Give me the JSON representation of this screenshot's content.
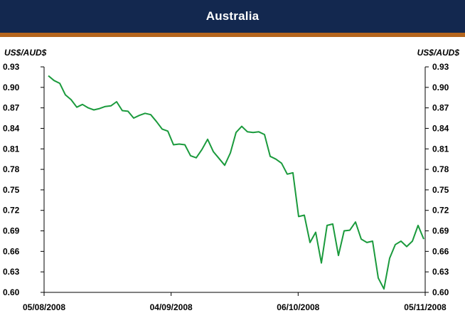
{
  "chart_data": {
    "type": "line",
    "title": "Australia",
    "ylabel_left": "US$/AUD$",
    "ylabel_right": "US$/AUD$",
    "ylim": [
      0.6,
      0.93
    ],
    "yticks": [
      "0.93",
      "0.90",
      "0.87",
      "0.84",
      "0.81",
      "0.78",
      "0.75",
      "0.72",
      "0.69",
      "0.66",
      "0.63",
      "0.60"
    ],
    "xticks": [
      "05/08/2008",
      "04/09/2008",
      "06/10/2008",
      "05/11/2008"
    ],
    "line_color": "#1a9a3c",
    "series": [
      {
        "values": [
          0.917,
          0.91,
          0.906,
          0.889,
          0.882,
          0.871,
          0.875,
          0.87,
          0.867,
          0.869,
          0.872,
          0.873,
          0.879,
          0.866,
          0.865,
          0.855,
          0.859,
          0.862,
          0.86,
          0.85,
          0.839,
          0.836,
          0.816,
          0.817,
          0.816,
          0.8,
          0.797,
          0.809,
          0.824,
          0.806,
          0.796,
          0.786,
          0.804,
          0.834,
          0.843,
          0.835,
          0.834,
          0.835,
          0.831,
          0.799,
          0.795,
          0.789,
          0.773,
          0.775,
          0.711,
          0.713,
          0.673,
          0.688,
          0.643,
          0.698,
          0.7,
          0.654,
          0.69,
          0.691,
          0.703,
          0.678,
          0.673,
          0.675,
          0.621,
          0.605,
          0.65,
          0.67,
          0.675,
          0.667,
          0.675,
          0.698,
          0.678
        ]
      }
    ]
  }
}
